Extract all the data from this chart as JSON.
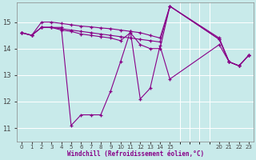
{
  "background_color": "#c8eaea",
  "line_color": "#880088",
  "xlabel": "Windchill (Refroidissement éolien,°C)",
  "ylim": [
    10.5,
    15.75
  ],
  "yticks": [
    11,
    12,
    13,
    14,
    15
  ],
  "grid_color": "#ffffff",
  "n_cols": 23,
  "xtick_positions": [
    0,
    1,
    2,
    3,
    4,
    5,
    6,
    7,
    8,
    9,
    10,
    11,
    12,
    13,
    14,
    15,
    20,
    21,
    22,
    23
  ],
  "xtick_labels": [
    "0",
    "1",
    "2",
    "3",
    "4",
    "5",
    "6",
    "7",
    "8",
    "9",
    "10",
    "11",
    "12",
    "13",
    "14",
    "15",
    "20",
    "21",
    "22",
    "23"
  ],
  "lines": [
    {
      "x": [
        0,
        1,
        2,
        3,
        4,
        5,
        6,
        7,
        8,
        9,
        10,
        11,
        12,
        13,
        14,
        15,
        20,
        21,
        22,
        23
      ],
      "y": [
        14.6,
        14.5,
        14.8,
        14.8,
        14.8,
        11.1,
        11.5,
        11.5,
        11.5,
        12.4,
        13.5,
        14.65,
        12.1,
        12.5,
        14.1,
        12.85,
        14.15,
        13.5,
        13.35,
        13.75
      ]
    },
    {
      "x": [
        0,
        1,
        2,
        3,
        4,
        5,
        6,
        7,
        8,
        9,
        10,
        11,
        12,
        13,
        14,
        15,
        20,
        21,
        22,
        23
      ],
      "y": [
        14.6,
        14.5,
        14.8,
        14.8,
        14.7,
        14.65,
        14.55,
        14.5,
        14.45,
        14.4,
        14.3,
        14.6,
        14.15,
        14.0,
        14.0,
        15.6,
        14.35,
        13.5,
        13.35,
        13.75
      ]
    },
    {
      "x": [
        0,
        1,
        2,
        3,
        4,
        5,
        6,
        7,
        8,
        9,
        10,
        11,
        12,
        13,
        14,
        15,
        20,
        21,
        22,
        23
      ],
      "y": [
        14.6,
        14.5,
        14.8,
        14.8,
        14.75,
        14.7,
        14.65,
        14.6,
        14.55,
        14.5,
        14.45,
        14.4,
        14.35,
        14.3,
        14.25,
        15.6,
        14.4,
        13.5,
        13.35,
        13.75
      ]
    },
    {
      "x": [
        0,
        1,
        2,
        3,
        4,
        5,
        6,
        7,
        8,
        9,
        10,
        11,
        12,
        13,
        14,
        15,
        20,
        21,
        22,
        23
      ],
      "y": [
        14.6,
        14.5,
        15.0,
        15.0,
        14.95,
        14.9,
        14.85,
        14.82,
        14.78,
        14.75,
        14.7,
        14.65,
        14.6,
        14.5,
        14.4,
        15.6,
        14.35,
        13.5,
        13.35,
        13.75
      ]
    }
  ]
}
